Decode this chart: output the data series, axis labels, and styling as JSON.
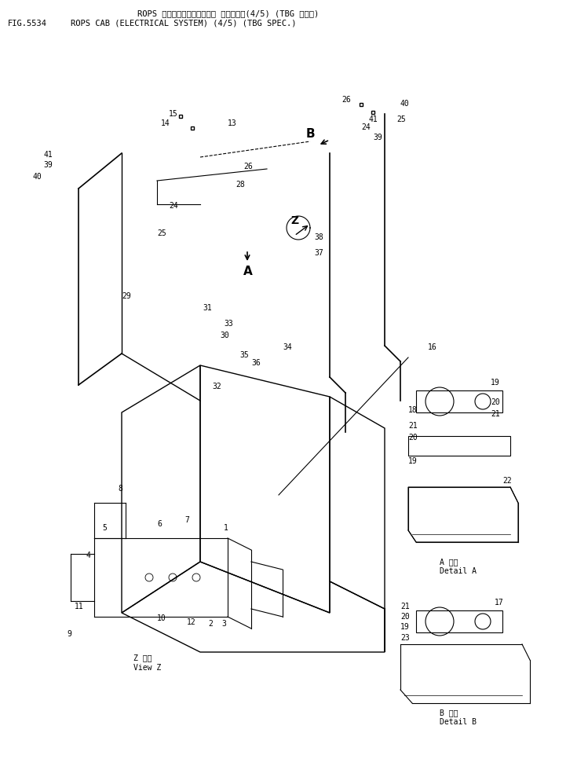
{
  "title_line1": "ROPS キャブ（エレクトリカル システム）（4/5）（TBG ショウ）",
  "title_line1_ascii": "ROPS キャブ（エレクトリカル システム）(4/5) (TBG ショウ)",
  "title_line2": "ROPS CAB (ELECTRICAL SYSTEM) (4/5) (TBG SPEC.)",
  "fig_number": "FIG.5534",
  "bg_color": "#ffffff",
  "line_color": "#000000",
  "fig_width": 7.49,
  "fig_height": 9.75,
  "dpi": 100
}
